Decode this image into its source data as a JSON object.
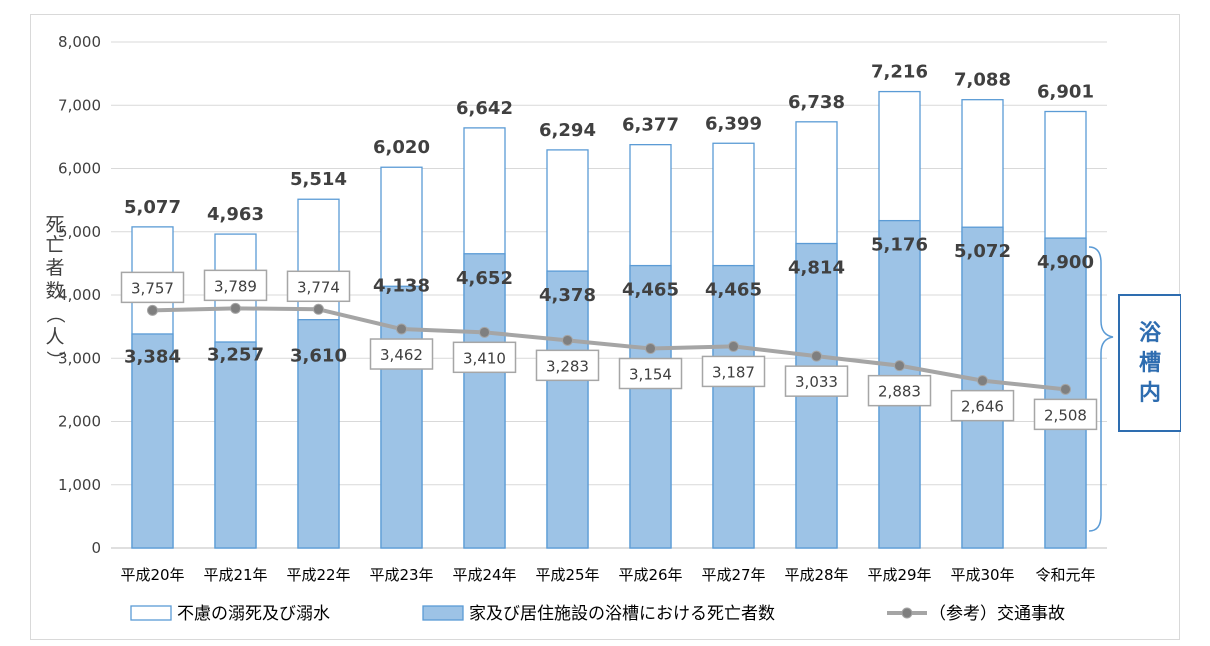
{
  "chart_data": {
    "type": "bar",
    "stacked": false,
    "categories": [
      "平成20年",
      "平成21年",
      "平成22年",
      "平成23年",
      "平成24年",
      "平成25年",
      "平成26年",
      "平成27年",
      "平成28年",
      "平成29年",
      "平成30年",
      "令和元年"
    ],
    "series": [
      {
        "name": "不慮の溺死及び溺水",
        "kind": "bar-outline",
        "values": [
          5077,
          4963,
          5514,
          6020,
          6642,
          6294,
          6377,
          6399,
          6738,
          7216,
          7088,
          6901
        ],
        "labels": [
          "5,077",
          "4,963",
          "5,514",
          "6,020",
          "6,642",
          "6,294",
          "6,377",
          "6,399",
          "6,738",
          "7,216",
          "7,088",
          "6,901"
        ]
      },
      {
        "name": "家及び居住施設の浴槽における死亡者数",
        "kind": "bar-filled",
        "values": [
          3384,
          3257,
          3610,
          4138,
          4652,
          4378,
          4465,
          4465,
          4814,
          5176,
          5072,
          4900
        ],
        "labels": [
          "3,384",
          "3,257",
          "3,610",
          "4,138",
          "4,652",
          "4,378",
          "4,465",
          "4,465",
          "4,814",
          "5,176",
          "5,072",
          "4,900"
        ]
      },
      {
        "name": "（参考）交通事故",
        "kind": "line",
        "values": [
          3757,
          3789,
          3774,
          3462,
          3410,
          3283,
          3154,
          3187,
          3033,
          2883,
          2646,
          2508
        ],
        "labels": [
          "3,757",
          "3,789",
          "3,774",
          "3,462",
          "3,410",
          "3,283",
          "3,154",
          "3,187",
          "3,033",
          "2,883",
          "2,646",
          "2,508"
        ]
      }
    ],
    "ylabel": "死亡者数（人）",
    "ylim": [
      0,
      8000
    ],
    "yticks": [
      0,
      1000,
      2000,
      3000,
      4000,
      5000,
      6000,
      7000,
      8000
    ],
    "ytick_labels": [
      "0",
      "1,000",
      "2,000",
      "3,000",
      "4,000",
      "5,000",
      "6,000",
      "7,000",
      "8,000"
    ],
    "grid": true,
    "legend_position": "bottom",
    "annotation": "浴槽内"
  },
  "colors": {
    "bar_outline": "#5b9bd5",
    "bar_fill": "#9dc3e6",
    "line": "#a5a5a5",
    "marker": "#7f7f7f",
    "grid": "#d9d9d9",
    "annotation": "#2e6db0"
  }
}
